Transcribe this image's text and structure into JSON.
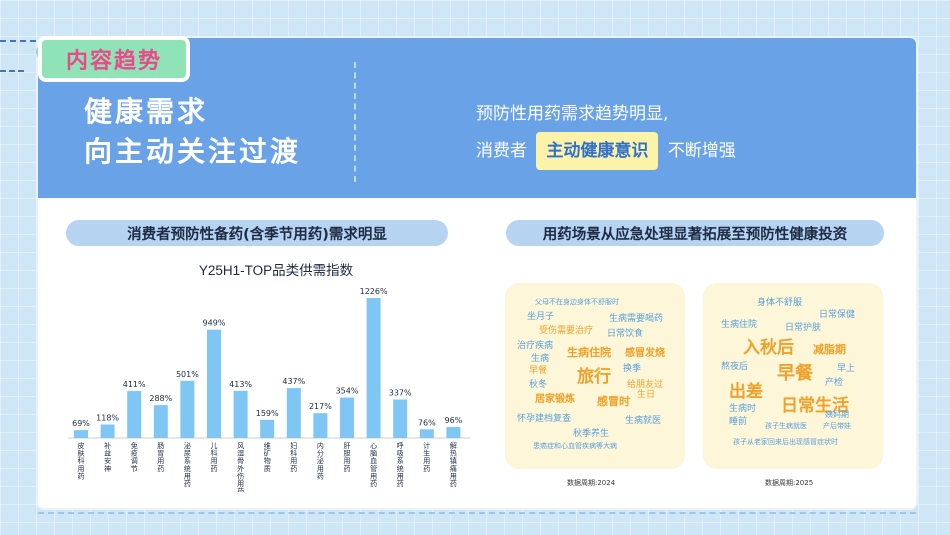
{
  "tag": "内容趋势",
  "main_title": [
    "健康需求",
    "向主动关注过渡"
  ],
  "subtitle": {
    "line1": "预防性用药需求趋势明显,",
    "line2_pre": "消费者",
    "line2_highlight": "主动健康意识",
    "line2_post": "不断增强"
  },
  "left_pill": "消费者预防性备药(含季节用药)需求明显",
  "right_pill": "用药场景从应急处理显著拓展至预防性健康投资",
  "chart_data": {
    "type": "bar",
    "title": "Y25H1-TOP品类供需指数",
    "categories": [
      "皮肤科用药",
      "补益安神",
      "免疫调节",
      "肠胃用药",
      "泌尿系统用药",
      "儿科用药",
      "风湿骨外伤用药",
      "维矿物质",
      "妇科用药",
      "内分泌用药",
      "肝胆用药",
      "心脑血管用药",
      "呼吸系统用药",
      "计生用药",
      "解热镇痛用药"
    ],
    "values": [
      69,
      118,
      411,
      288,
      501,
      949,
      413,
      159,
      437,
      217,
      354,
      1226,
      337,
      76,
      96
    ],
    "labels": [
      "69%",
      "118%",
      "411%",
      "288%",
      "501%",
      "949%",
      "413%",
      "159%",
      "437%",
      "217%",
      "354%",
      "1226%",
      "337%",
      "76%",
      "96%"
    ],
    "color": "#7fc6f4"
  },
  "cloud_2024": {
    "caption": "数据周期:2024",
    "words": [
      {
        "text": "父母不在身边身体不舒服时",
        "style": "blue",
        "size": 7
      },
      {
        "text": "坐月子",
        "style": "blue",
        "size": 9
      },
      {
        "text": "生病需要喝药",
        "style": "blue",
        "size": 9
      },
      {
        "text": "受伤需要治疗",
        "style": "orange",
        "size": 9
      },
      {
        "text": "日常饮食",
        "style": "blue",
        "size": 9
      },
      {
        "text": "治疗疾病",
        "style": "blue",
        "size": 9
      },
      {
        "text": "生病住院",
        "style": "orange",
        "size": 11
      },
      {
        "text": "感冒发烧",
        "style": "orange",
        "size": 10
      },
      {
        "text": "生病",
        "style": "blue",
        "size": 9
      },
      {
        "text": "早餐",
        "style": "orange",
        "size": 9
      },
      {
        "text": "旅行",
        "style": "orange",
        "size": 17
      },
      {
        "text": "换季",
        "style": "blue",
        "size": 9
      },
      {
        "text": "秋冬",
        "style": "blue",
        "size": 9
      },
      {
        "text": "给朋友过",
        "style": "orange",
        "size": 9
      },
      {
        "text": "居家锻炼",
        "style": "orange",
        "size": 10
      },
      {
        "text": "感冒时",
        "style": "orange",
        "size": 11
      },
      {
        "text": "生日",
        "style": "orange",
        "size": 9
      },
      {
        "text": "怀孕建档复查",
        "style": "blue",
        "size": 9
      },
      {
        "text": "生病就医",
        "style": "blue",
        "size": 9
      },
      {
        "text": "秋季养生",
        "style": "blue",
        "size": 9
      },
      {
        "text": "患癌症和心血管疾病等大病",
        "style": "blue",
        "size": 7
      }
    ]
  },
  "cloud_2025": {
    "caption": "数据周期:2025",
    "words": [
      {
        "text": "身体不舒服",
        "style": "blue",
        "size": 9
      },
      {
        "text": "日常保健",
        "style": "blue",
        "size": 9
      },
      {
        "text": "生病住院",
        "style": "blue",
        "size": 9
      },
      {
        "text": "日常护肤",
        "style": "blue",
        "size": 9
      },
      {
        "text": "入秋后",
        "style": "orange",
        "size": 17
      },
      {
        "text": "减脂期",
        "style": "orange",
        "size": 11
      },
      {
        "text": "熬夜后",
        "style": "blue",
        "size": 9
      },
      {
        "text": "早餐",
        "style": "orange",
        "size": 18
      },
      {
        "text": "早上",
        "style": "blue",
        "size": 9
      },
      {
        "text": "出差",
        "style": "orange",
        "size": 17
      },
      {
        "text": "产检",
        "style": "blue",
        "size": 9
      },
      {
        "text": "日常生活",
        "style": "orange",
        "size": 17
      },
      {
        "text": "生病时",
        "style": "blue",
        "size": 9
      },
      {
        "text": "姨妈期",
        "style": "blue",
        "size": 8
      },
      {
        "text": "睡前",
        "style": "blue",
        "size": 9
      },
      {
        "text": "孩子生病就医",
        "style": "blue",
        "size": 7
      },
      {
        "text": "产后带娃",
        "style": "blue",
        "size": 7
      },
      {
        "text": "孩子从老家回来后出现感冒症状时",
        "style": "blue",
        "size": 7
      }
    ]
  }
}
